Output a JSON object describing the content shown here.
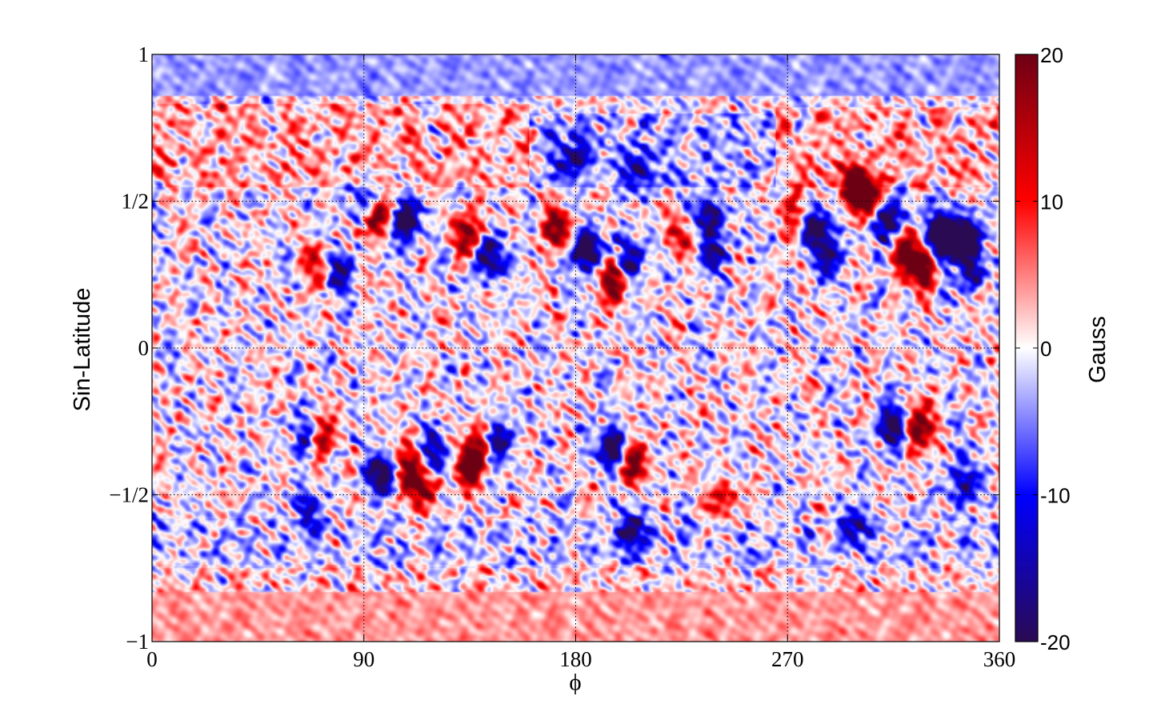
{
  "chart_data": {
    "type": "heatmap",
    "title": "",
    "xlabel": "ϕ",
    "ylabel": "Sin-Latitude",
    "xlim": [
      0,
      360
    ],
    "ylim": [
      -1,
      1
    ],
    "x_ticks": [
      {
        "value": 0,
        "label": "0"
      },
      {
        "value": 90,
        "label": "90"
      },
      {
        "value": 180,
        "label": "180"
      },
      {
        "value": 270,
        "label": "270"
      },
      {
        "value": 360,
        "label": "360"
      }
    ],
    "y_ticks": [
      {
        "value": 1,
        "label": "1"
      },
      {
        "value": 0.5,
        "label": "1/2"
      },
      {
        "value": 0,
        "label": "0"
      },
      {
        "value": -0.5,
        "label": "−1/2"
      },
      {
        "value": -1,
        "label": "−1"
      }
    ],
    "grid": true,
    "grid_style": "dotted",
    "colorbar": {
      "label": "Gauss",
      "range": [
        -20,
        20
      ],
      "ticks": [
        {
          "value": 20,
          "label": "20"
        },
        {
          "value": 10,
          "label": "10"
        },
        {
          "value": 0,
          "label": "0"
        },
        {
          "value": -10,
          "label": "-10"
        },
        {
          "value": -20,
          "label": "-20"
        }
      ],
      "colormap": [
        "#2a0a52",
        "#0000ff",
        "#ffffff",
        "#ff0000",
        "#6e0014"
      ]
    },
    "polar_caps": [
      {
        "name": "north",
        "lat_range": [
          0.86,
          1.0
        ],
        "value": -4
      },
      {
        "name": "south",
        "lat_range": [
          -1.0,
          -0.83
        ],
        "value": 4
      }
    ],
    "background_bands": [
      {
        "lat_range": [
          0.55,
          0.83
        ],
        "lon_range": [
          0,
          160
        ],
        "value": 3
      },
      {
        "lat_range": [
          0.55,
          0.8
        ],
        "lon_range": [
          160,
          265
        ],
        "value": -3
      },
      {
        "lat_range": [
          0.55,
          0.82
        ],
        "lon_range": [
          265,
          360
        ],
        "value": 3
      },
      {
        "lat_range": [
          -0.75,
          -0.58
        ],
        "lon_range": [
          0,
          360
        ],
        "value": -2
      },
      {
        "lat_range": [
          -0.83,
          -0.74
        ],
        "lon_range": [
          0,
          360
        ],
        "value": 1.5
      }
    ],
    "features": [
      {
        "lon": 95,
        "lat": 0.45,
        "value": 20
      },
      {
        "lon": 108,
        "lat": 0.43,
        "value": -20
      },
      {
        "lon": 72,
        "lat": 0.28,
        "value": 17
      },
      {
        "lon": 77,
        "lat": 0.27,
        "value": -20
      },
      {
        "lon": 90,
        "lat": 0.5,
        "value": -14
      },
      {
        "lon": 134,
        "lat": 0.39,
        "value": 17
      },
      {
        "lon": 143,
        "lat": 0.31,
        "value": -18
      },
      {
        "lon": 172,
        "lat": 0.41,
        "value": 16
      },
      {
        "lon": 184,
        "lat": 0.33,
        "value": -20
      },
      {
        "lon": 196,
        "lat": 0.23,
        "value": 18
      },
      {
        "lon": 202,
        "lat": 0.3,
        "value": -16
      },
      {
        "lon": 226,
        "lat": 0.38,
        "value": 10
      },
      {
        "lon": 237,
        "lat": 0.45,
        "value": -15
      },
      {
        "lon": 238,
        "lat": 0.33,
        "value": -13
      },
      {
        "lon": 180,
        "lat": 0.65,
        "value": -12
      },
      {
        "lon": 208,
        "lat": 0.6,
        "value": -10
      },
      {
        "lon": 274,
        "lat": 0.48,
        "value": 10
      },
      {
        "lon": 282,
        "lat": 0.42,
        "value": -16
      },
      {
        "lon": 288,
        "lat": 0.32,
        "value": -14
      },
      {
        "lon": 298,
        "lat": 0.55,
        "value": 17
      },
      {
        "lon": 304,
        "lat": 0.51,
        "value": 20
      },
      {
        "lon": 312,
        "lat": 0.44,
        "value": -20
      },
      {
        "lon": 320,
        "lat": 0.32,
        "value": 16
      },
      {
        "lon": 328,
        "lat": 0.28,
        "value": 20
      },
      {
        "lon": 335,
        "lat": 0.4,
        "value": -17
      },
      {
        "lon": 337,
        "lat": 0.36,
        "value": -20
      },
      {
        "lon": 346,
        "lat": 0.37,
        "value": -20
      },
      {
        "lon": 348,
        "lat": 0.26,
        "value": -12
      },
      {
        "lon": 66,
        "lat": -0.31,
        "value": -14
      },
      {
        "lon": 71,
        "lat": -0.31,
        "value": 16
      },
      {
        "lon": 98,
        "lat": -0.43,
        "value": -20
      },
      {
        "lon": 108,
        "lat": -0.41,
        "value": 15
      },
      {
        "lon": 114,
        "lat": -0.48,
        "value": 16
      },
      {
        "lon": 121,
        "lat": -0.36,
        "value": -12
      },
      {
        "lon": 135,
        "lat": -0.4,
        "value": 20
      },
      {
        "lon": 141,
        "lat": -0.33,
        "value": 16
      },
      {
        "lon": 146,
        "lat": -0.32,
        "value": -20
      },
      {
        "lon": 196,
        "lat": -0.34,
        "value": -20
      },
      {
        "lon": 204,
        "lat": -0.39,
        "value": 18
      },
      {
        "lon": 242,
        "lat": -0.52,
        "value": 10
      },
      {
        "lon": 315,
        "lat": -0.27,
        "value": -20
      },
      {
        "lon": 325,
        "lat": -0.27,
        "value": 20
      },
      {
        "lon": 345,
        "lat": -0.46,
        "value": -14
      },
      {
        "lon": 65,
        "lat": -0.55,
        "value": -10
      },
      {
        "lon": 205,
        "lat": -0.62,
        "value": -14
      },
      {
        "lon": 300,
        "lat": -0.6,
        "value": -10
      }
    ]
  }
}
